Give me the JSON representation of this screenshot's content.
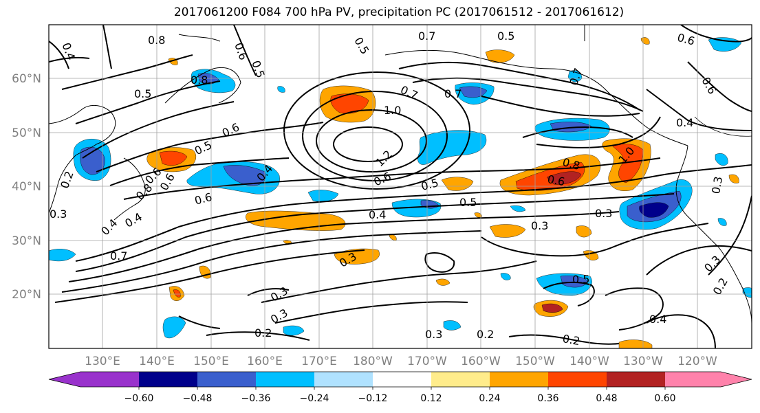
{
  "title": "2017061200 F084 700 hPa PV, precipitation PC (2017061512 - 2017061612)",
  "lat_labels": [
    "60°N",
    "50°N",
    "40°N",
    "30°N",
    "20°N"
  ],
  "lon_labels": [
    "130°E",
    "140°E",
    "150°E",
    "160°E",
    "170°E",
    "180°W",
    "170°W",
    "160°W",
    "150°W",
    "140°W",
    "130°W",
    "120°W"
  ],
  "colorbar": {
    "ticks": [
      "−0.60",
      "−0.48",
      "−0.36",
      "−0.24",
      "−0.12",
      "0.12",
      "0.24",
      "0.36",
      "0.48",
      "0.60"
    ],
    "colors": [
      "#9932cc",
      "#00008b",
      "#3a5fcd",
      "#00bfff",
      "#b0e2ff",
      "#ffffff",
      "#ffec8b",
      "#ffa500",
      "#ff4500",
      "#b22222",
      "#ff82ab"
    ]
  },
  "contour_labels": [
    {
      "text": "0.8"
    },
    {
      "text": "0.4"
    },
    {
      "text": "0.6"
    },
    {
      "text": "0.5"
    },
    {
      "text": "0.7"
    },
    {
      "text": "0.5"
    },
    {
      "text": "0.5"
    },
    {
      "text": "0.8"
    },
    {
      "text": "0.5"
    },
    {
      "text": "0.6"
    },
    {
      "text": "0.5"
    },
    {
      "text": "0.6"
    },
    {
      "text": "0.7"
    },
    {
      "text": "1.0"
    },
    {
      "text": "0.4"
    },
    {
      "text": "0.4"
    },
    {
      "text": "0.8"
    },
    {
      "text": "0.6"
    },
    {
      "text": "0.2"
    },
    {
      "text": "0.3"
    },
    {
      "text": "0.4"
    },
    {
      "text": "0.6"
    },
    {
      "text": "0.7"
    },
    {
      "text": "1.2"
    },
    {
      "text": "0.6"
    },
    {
      "text": "0.5"
    },
    {
      "text": "0.5"
    },
    {
      "text": "0.4"
    },
    {
      "text": "0.3"
    },
    {
      "text": "0.3"
    },
    {
      "text": "0.3"
    },
    {
      "text": "0.3"
    },
    {
      "text": "0.2"
    },
    {
      "text": "0.3"
    },
    {
      "text": "0.2"
    },
    {
      "text": "0.8"
    },
    {
      "text": "0.6"
    },
    {
      "text": "1.0"
    },
    {
      "text": "0.3"
    },
    {
      "text": "0.5"
    },
    {
      "text": "0.2"
    },
    {
      "text": "0.4"
    },
    {
      "text": "0.4"
    },
    {
      "text": "0.3"
    },
    {
      "text": "0.3"
    },
    {
      "text": "0.2"
    },
    {
      "text": "0.6"
    },
    {
      "text": "0.6"
    },
    {
      "text": "0.7"
    },
    {
      "text": "0.7"
    }
  ]
}
